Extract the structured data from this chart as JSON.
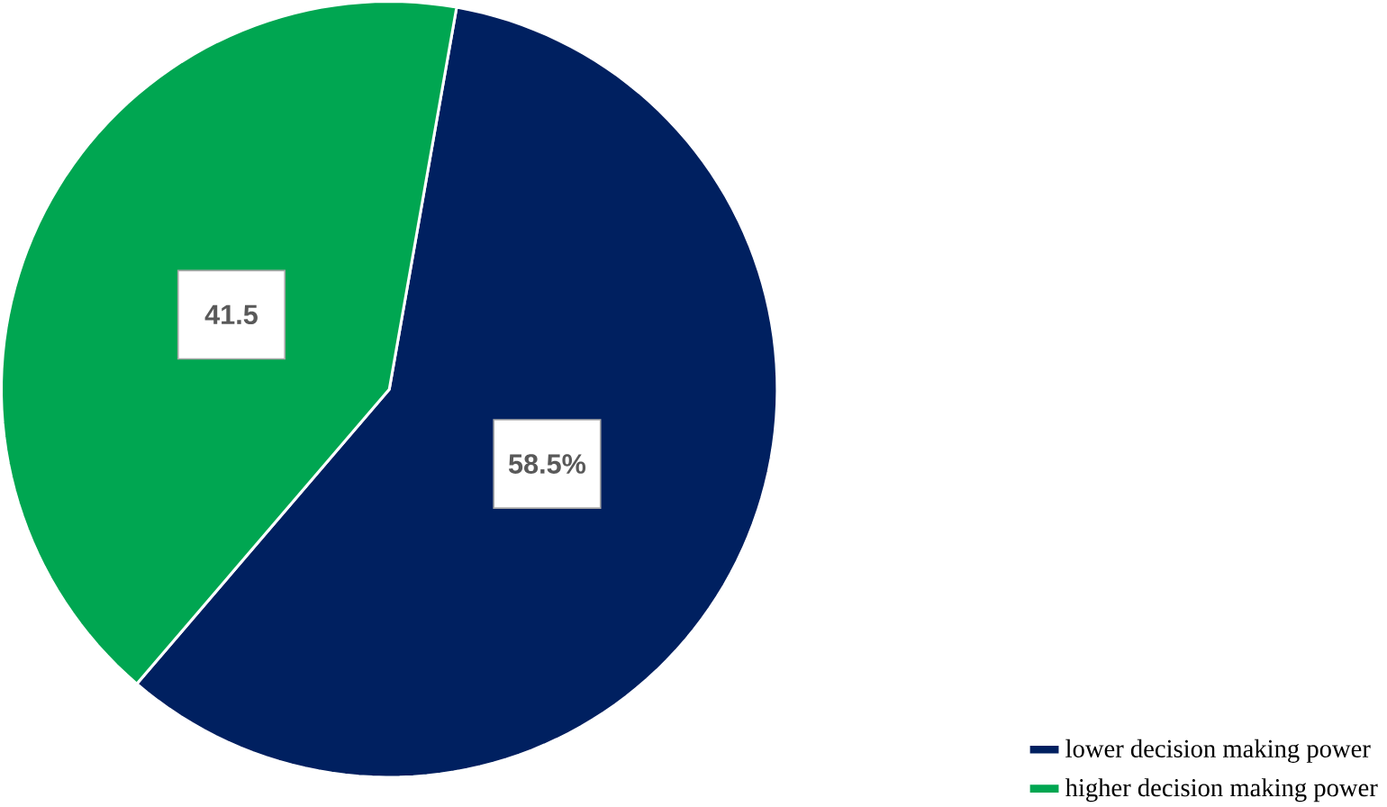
{
  "chart_data": {
    "type": "pie",
    "categories": [
      "lower decision making power",
      "higher decision making power"
    ],
    "values": [
      58.5,
      41.5
    ],
    "colors": [
      "#002060",
      "#00a651"
    ],
    "value_labels": [
      "58.5%",
      "41.5"
    ],
    "legend": "bottom right"
  }
}
